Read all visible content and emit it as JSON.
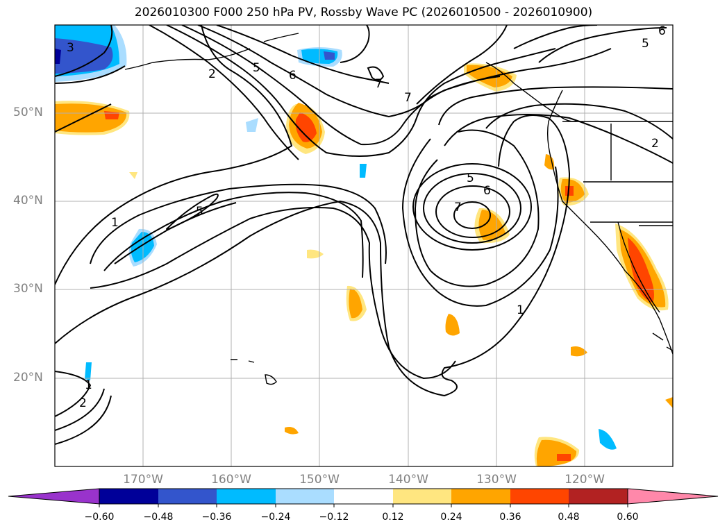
{
  "title": "2026010300 F000 250 hPa PV, Rossby Wave PC (2026010500 - 2026010900)",
  "map": {
    "lon_range": [
      -180,
      -110
    ],
    "lat_range": [
      10,
      60
    ],
    "grid": true,
    "lat_labels": [
      "50°N",
      "40°N",
      "30°N",
      "20°N"
    ],
    "lon_labels": [
      "170°W",
      "160°W",
      "150°W",
      "140°W",
      "130°W",
      "120°W"
    ]
  },
  "contour_labels": [
    "3",
    "2",
    "5",
    "6",
    "7",
    "7",
    "5",
    "6",
    "7",
    "5",
    "1",
    "1",
    "1",
    "2",
    "6",
    "5",
    "2"
  ],
  "colorbar": {
    "ticks": [
      "−0.60",
      "−0.48",
      "−0.36",
      "−0.24",
      "−0.12",
      "0.12",
      "0.24",
      "0.36",
      "0.48",
      "0.60"
    ],
    "colors": [
      "#9933cc",
      "#000099",
      "#3355cc",
      "#00bbff",
      "#aaddff",
      "#ffffff",
      "#ffe680",
      "#ffa500",
      "#ff4500",
      "#b22222",
      "#ff88aa"
    ],
    "extend": "both"
  }
}
